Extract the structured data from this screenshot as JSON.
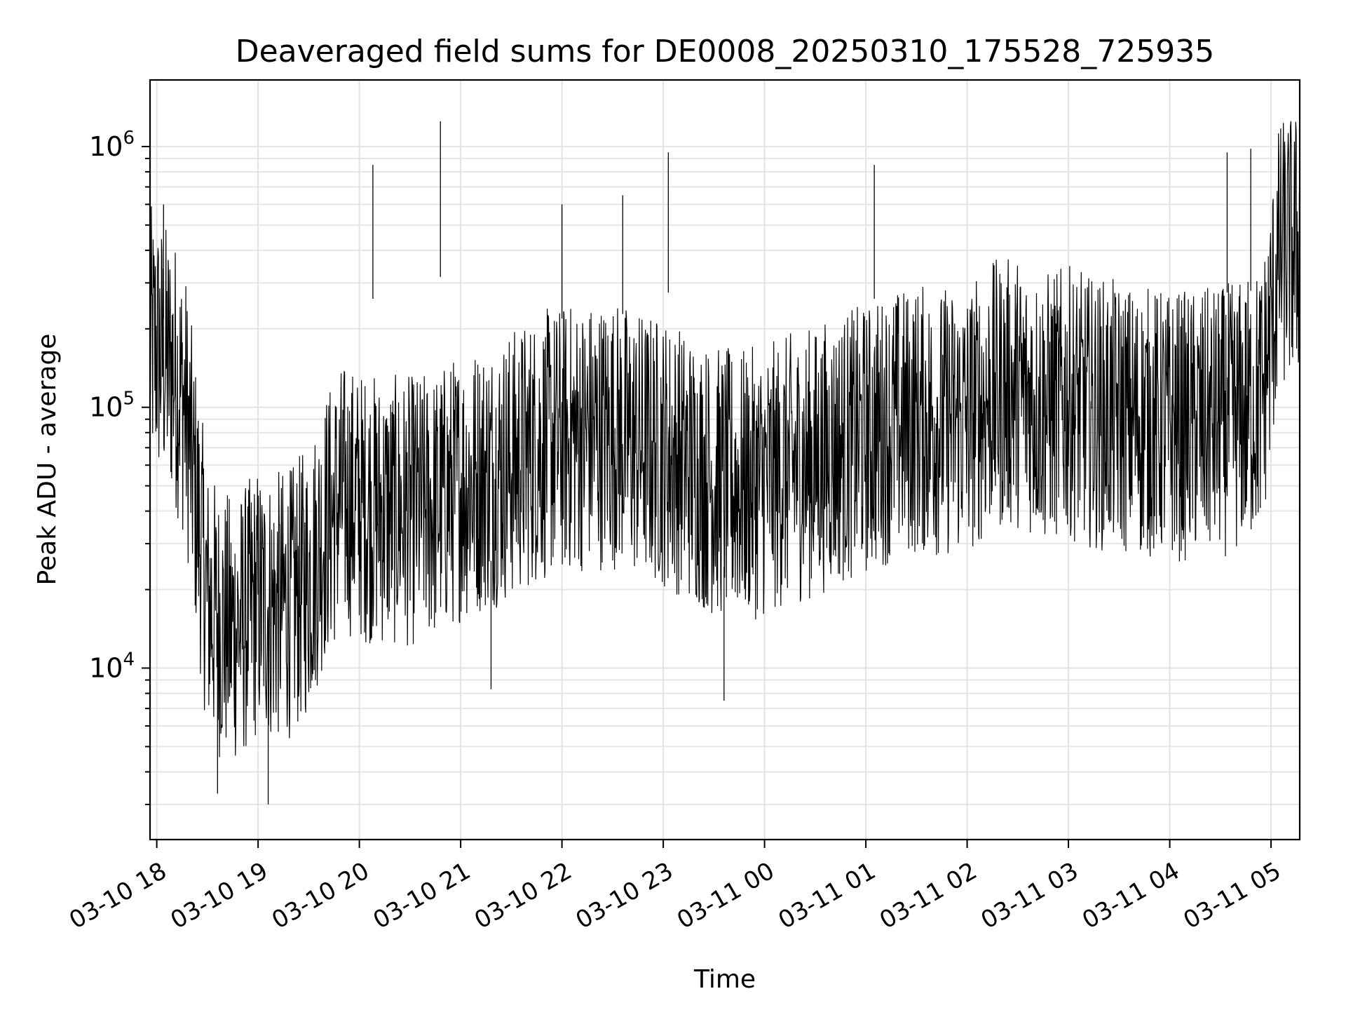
{
  "chart_data": {
    "type": "line",
    "title": "Deaveraged field sums for DE0008_20250310_175528_725935",
    "xlabel": "Time",
    "ylabel": "Peak ADU - average",
    "yscale": "log",
    "ylim": [
      2200,
      1800000
    ],
    "xlim": [
      "2025-03-10 17:56",
      "2025-03-11 05:17"
    ],
    "grid": true,
    "x_ticks": [
      "2025-03-10 18:00",
      "2025-03-10 19:00",
      "2025-03-10 20:00",
      "2025-03-10 21:00",
      "2025-03-10 22:00",
      "2025-03-10 23:00",
      "2025-03-11 00:00",
      "2025-03-11 01:00",
      "2025-03-11 02:00",
      "2025-03-11 03:00",
      "2025-03-11 04:00",
      "2025-03-11 05:00"
    ],
    "x_tick_labels": [
      "03-10 18",
      "03-10 19",
      "03-10 20",
      "03-10 21",
      "03-10 22",
      "03-10 23",
      "03-11 00",
      "03-11 01",
      "03-11 02",
      "03-11 03",
      "03-11 04",
      "03-11 05"
    ],
    "y_ticks": [
      10000,
      100000,
      1000000
    ],
    "y_tick_labels": [
      {
        "base": "10",
        "exp": "4"
      },
      {
        "base": "10",
        "exp": "5"
      },
      {
        "base": "10",
        "exp": "6"
      }
    ],
    "series": [
      {
        "color": "#000000",
        "x": [
          "2025-03-10 17:56",
          "2025-03-10 18:03",
          "2025-03-10 18:10",
          "2025-03-10 18:17",
          "2025-03-10 18:24",
          "2025-03-10 18:30",
          "2025-03-10 18:37",
          "2025-03-10 18:44",
          "2025-03-10 18:51",
          "2025-03-10 19:00",
          "2025-03-10 19:10",
          "2025-03-10 19:20",
          "2025-03-10 19:30",
          "2025-03-10 19:40",
          "2025-03-10 19:50",
          "2025-03-10 20:00",
          "2025-03-10 20:15",
          "2025-03-10 20:30",
          "2025-03-10 20:45",
          "2025-03-10 21:00",
          "2025-03-10 21:15",
          "2025-03-10 21:30",
          "2025-03-10 21:45",
          "2025-03-10 22:00",
          "2025-03-10 22:15",
          "2025-03-10 22:30",
          "2025-03-10 22:45",
          "2025-03-10 23:00",
          "2025-03-10 23:15",
          "2025-03-10 23:30",
          "2025-03-10 23:45",
          "2025-03-11 00:00",
          "2025-03-11 00:15",
          "2025-03-11 00:30",
          "2025-03-11 00:45",
          "2025-03-11 01:00",
          "2025-03-11 01:15",
          "2025-03-11 01:30",
          "2025-03-11 01:45",
          "2025-03-11 02:00",
          "2025-03-11 02:15",
          "2025-03-11 02:30",
          "2025-03-11 02:45",
          "2025-03-11 03:00",
          "2025-03-11 03:15",
          "2025-03-11 03:30",
          "2025-03-11 03:45",
          "2025-03-11 04:00",
          "2025-03-11 04:15",
          "2025-03-11 04:30",
          "2025-03-11 04:45",
          "2025-03-11 04:55",
          "2025-03-11 05:05",
          "2025-03-11 05:17"
        ],
        "y": [
          180000,
          160000,
          140000,
          100000,
          40000,
          18000,
          15000,
          14000,
          15000,
          18000,
          17000,
          18000,
          22000,
          35000,
          45000,
          42000,
          40000,
          40000,
          42000,
          50000,
          55000,
          60000,
          70000,
          75000,
          78000,
          80000,
          72000,
          68000,
          60000,
          52000,
          50000,
          52000,
          58000,
          62000,
          70000,
          75000,
          85000,
          90000,
          88000,
          90000,
          110000,
          115000,
          100000,
          105000,
          95000,
          92000,
          88000,
          85000,
          85000,
          88000,
          95000,
          110000,
          380000,
          420000
        ]
      }
    ],
    "spikes": [
      {
        "x": "2025-03-10 20:48",
        "y": 1250000
      },
      {
        "x": "2025-03-10 22:00",
        "y": 600000
      },
      {
        "x": "2025-03-10 22:36",
        "y": 650000
      },
      {
        "x": "2025-03-10 23:03",
        "y": 950000
      },
      {
        "x": "2025-03-11 01:05",
        "y": 850000
      },
      {
        "x": "2025-03-11 04:34",
        "y": 950000
      },
      {
        "x": "2025-03-11 04:48",
        "y": 980000
      },
      {
        "x": "2025-03-10 20:08",
        "y": 850000
      },
      {
        "x": "2025-03-10 18:04",
        "y": 600000
      },
      {
        "x": "2025-03-10 19:06",
        "y": 3000
      },
      {
        "x": "2025-03-10 18:36",
        "y": 3300
      },
      {
        "x": "2025-03-10 21:18",
        "y": 8300
      },
      {
        "x": "2025-03-10 23:36",
        "y": 7500
      }
    ]
  }
}
